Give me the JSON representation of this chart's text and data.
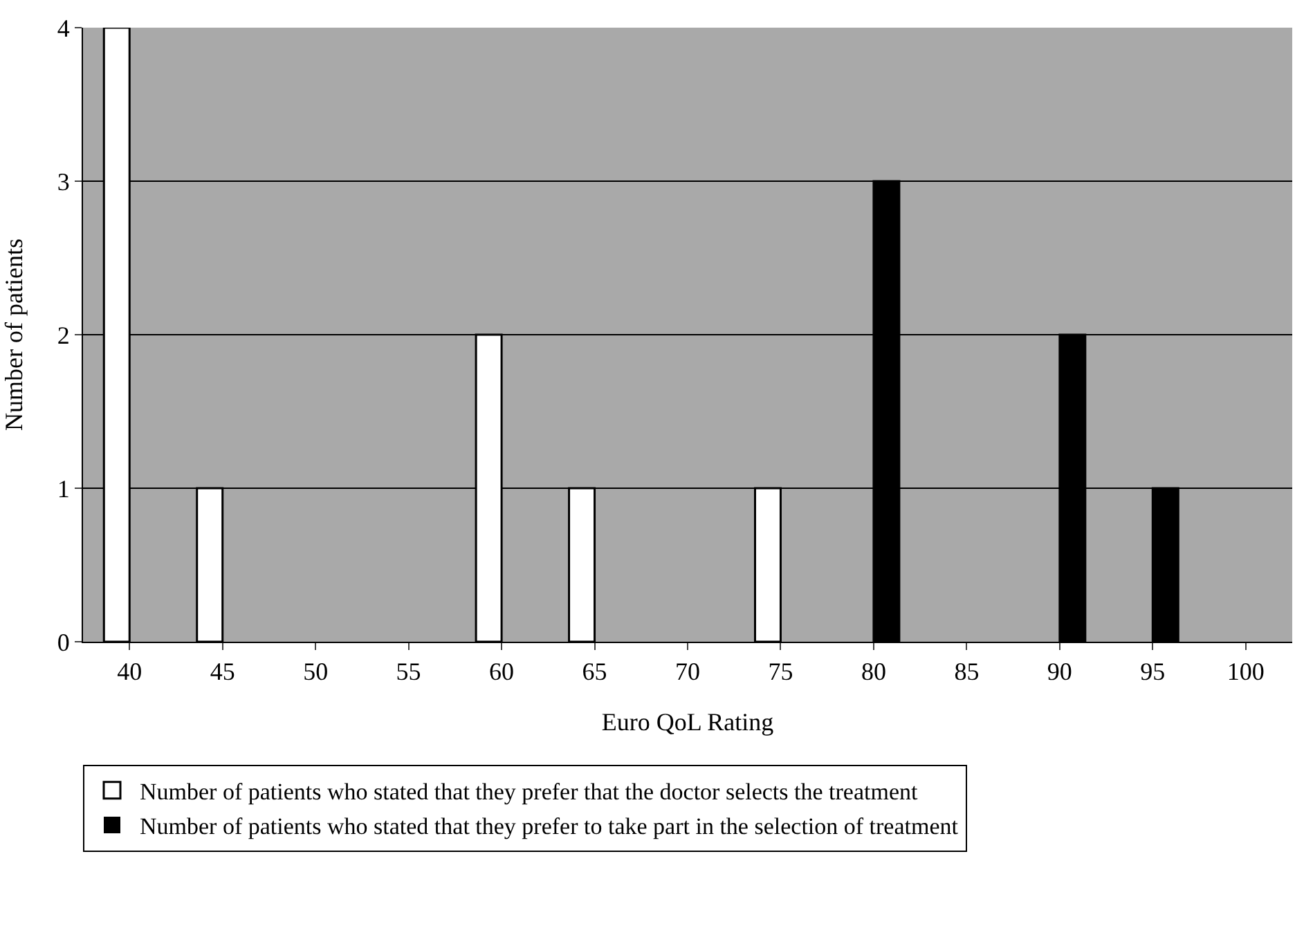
{
  "chart_data": {
    "type": "bar",
    "categories": [
      "40",
      "45",
      "50",
      "55",
      "60",
      "65",
      "70",
      "75",
      "80",
      "85",
      "90",
      "95",
      "100"
    ],
    "series": [
      {
        "name": "Number of patients who stated that they prefer that the doctor selects the treatment",
        "color": "#ffffff",
        "values": [
          4,
          1,
          0,
          0,
          2,
          1,
          0,
          1,
          0,
          0,
          0,
          0,
          0
        ]
      },
      {
        "name": "Number of patients who stated that they prefer to take part in the selection of treatment",
        "color": "#000000",
        "values": [
          0,
          0,
          0,
          0,
          0,
          0,
          0,
          0,
          3,
          0,
          2,
          1,
          0
        ]
      }
    ],
    "xlabel": "Euro QoL Rating",
    "ylabel": "Number of patients",
    "ylim": [
      0,
      4
    ],
    "yticks": [
      0,
      1,
      2,
      3,
      4
    ],
    "grid": "y",
    "legend": "bottom"
  }
}
